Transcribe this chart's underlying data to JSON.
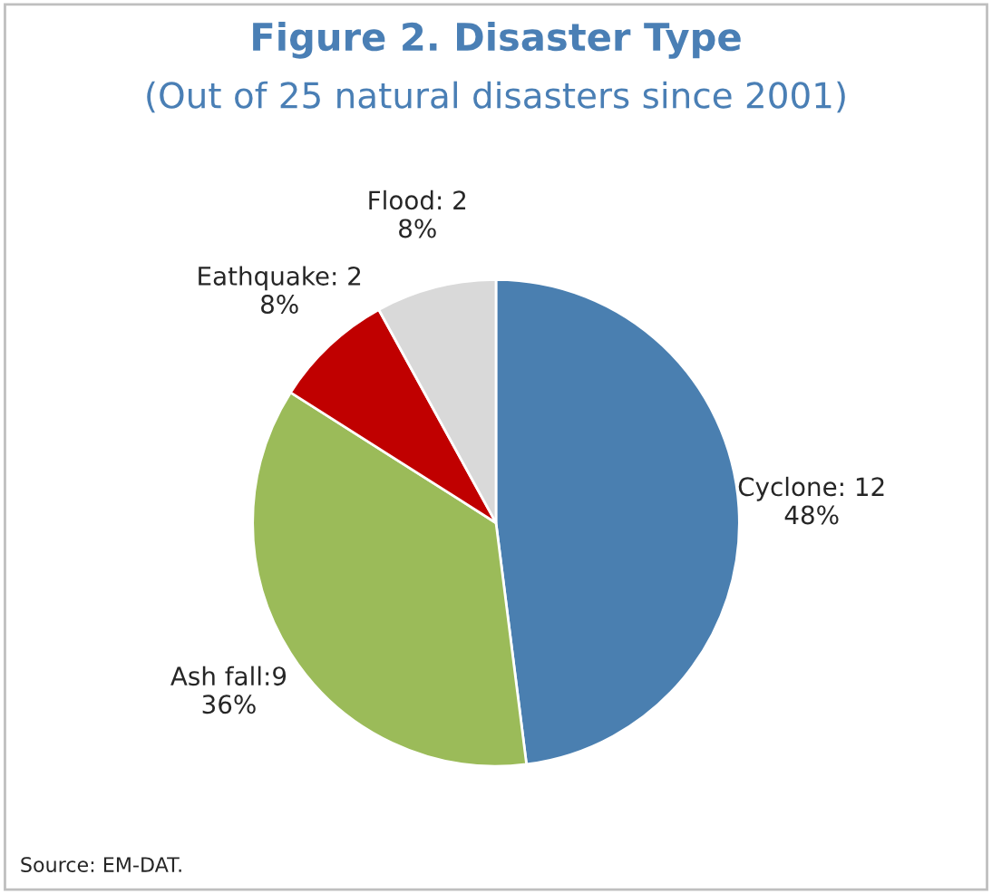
{
  "chart_data": {
    "type": "pie",
    "title": "Figure 2. Disaster Type",
    "subtitle": "(Out of 25 natural disasters since 2001)",
    "categories": [
      "Cyclone: 12",
      "Ash fall:9",
      "Eathquake: 2",
      "Flood: 2"
    ],
    "values": [
      48,
      36,
      8,
      8
    ],
    "value_labels": [
      "48%",
      "36%",
      "8%",
      "8%"
    ],
    "colors": [
      "#4a7fb0",
      "#9bbb59",
      "#c00000",
      "#d9d9d9"
    ],
    "annotations": [
      "Source: EM-DAT."
    ],
    "legend": false
  }
}
